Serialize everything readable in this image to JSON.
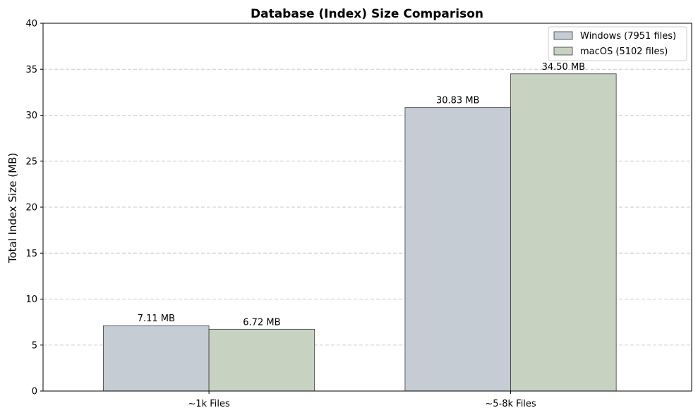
{
  "chart_data": {
    "type": "bar",
    "title": "Database (Index) Size Comparison",
    "xlabel": "",
    "ylabel": "Total Index Size (MB)",
    "categories": [
      "~1k Files",
      "~5-8k Files"
    ],
    "series": [
      {
        "name": "Windows (7951 files)",
        "values": [
          7.11,
          30.83
        ],
        "labels": [
          "7.11 MB",
          "30.83 MB"
        ],
        "color": "#c5ccd4"
      },
      {
        "name": "macOS (5102 files)",
        "values": [
          6.72,
          34.5
        ],
        "labels": [
          "6.72 MB",
          "34.50 MB"
        ],
        "color": "#c8d2c0"
      }
    ],
    "ylim": [
      0,
      40
    ],
    "yticks": [
      "0",
      "5",
      "10",
      "15",
      "20",
      "25",
      "30",
      "35",
      "40"
    ],
    "grid": "y-dashed",
    "legend_position": "top-right"
  }
}
